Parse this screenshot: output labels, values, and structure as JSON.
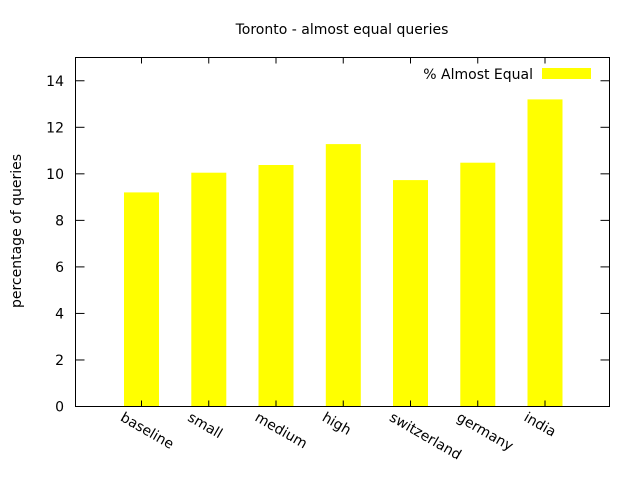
{
  "chart_data": {
    "type": "bar",
    "title": "Toronto - almost equal queries",
    "xlabel": "",
    "ylabel": "percentage of queries",
    "categories": [
      "baseline",
      "small",
      "medium",
      "high",
      "switzerland",
      "germany",
      "india"
    ],
    "series": [
      {
        "name": "% Almost Equal",
        "values": [
          9.2,
          10.05,
          10.38,
          11.28,
          9.73,
          10.48,
          13.2
        ],
        "color": "#ffff00"
      }
    ],
    "ylim": [
      0,
      15
    ],
    "yticks": [
      0,
      2,
      4,
      6,
      8,
      10,
      12,
      14
    ],
    "grid": false,
    "legend_position": "top-right"
  }
}
